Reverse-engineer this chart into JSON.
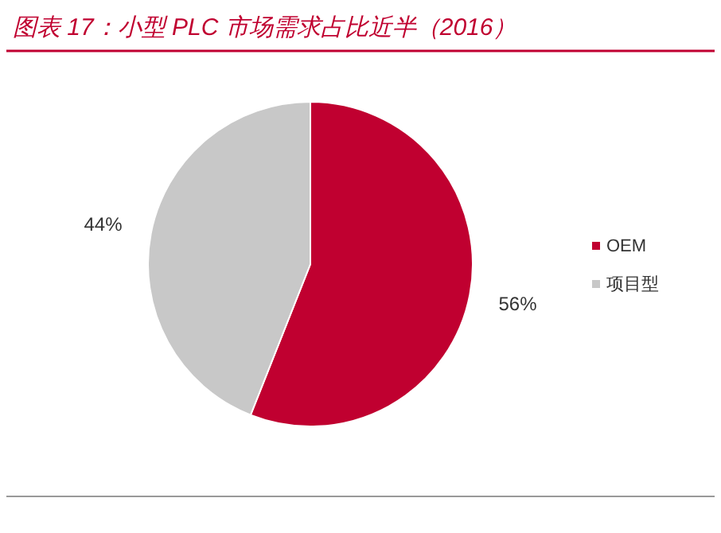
{
  "chart_data": {
    "type": "pie",
    "title": "图表 17：小型 PLC 市场需求占比近半（2016）",
    "categories": [
      "OEM",
      "项目型"
    ],
    "values": [
      56,
      44
    ],
    "colors": [
      "#c00030",
      "#c8c8c8"
    ],
    "value_labels": [
      "56%",
      "44%"
    ],
    "legend": "right"
  }
}
